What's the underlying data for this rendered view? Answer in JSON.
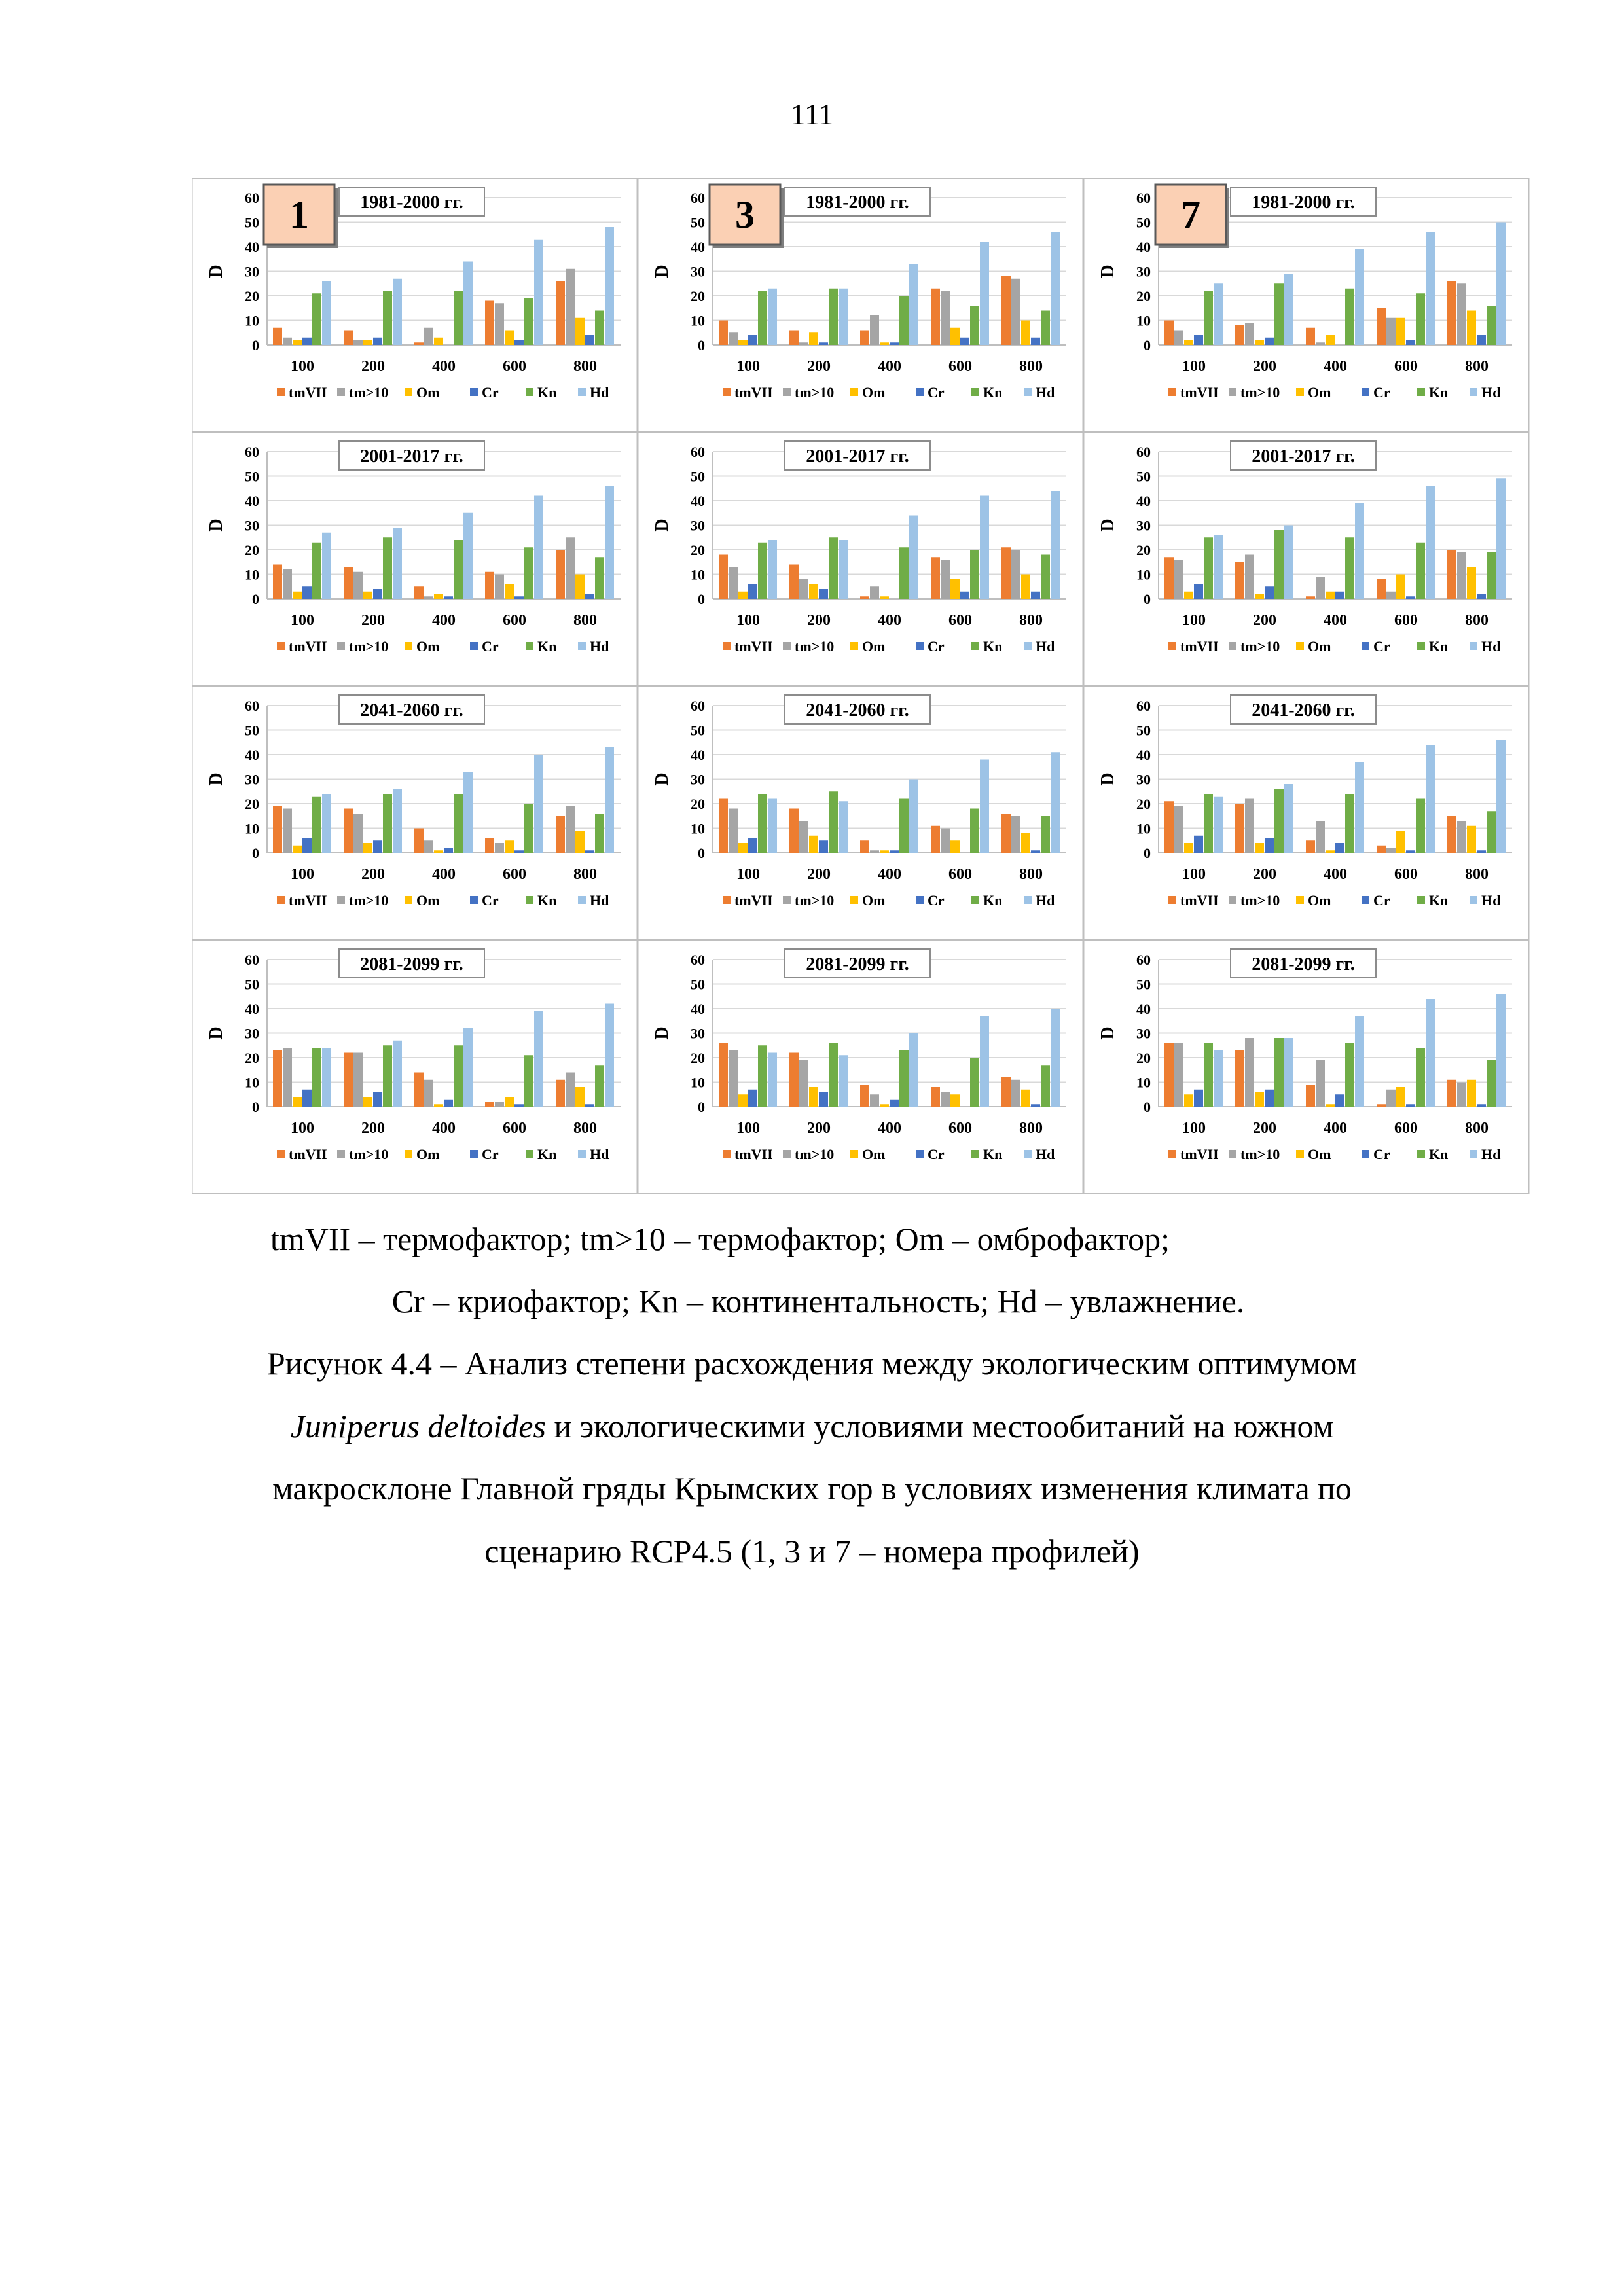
{
  "page_number": "111",
  "legend": [
    "tmVII",
    "tm>10",
    "Om",
    "Cr",
    "Kn",
    "Hd"
  ],
  "series_colors": [
    "#ED7D31",
    "#A5A5A5",
    "#FFC000",
    "#4472C4",
    "#70AD47",
    "#9DC3E6"
  ],
  "caption": {
    "legend_line1": "tmVII – термофактор; tm>10 – термофактор; Om – омброфактор;",
    "legend_line2": "Cr – криофактор; Kn – континентальность; Hd – увлажнение.",
    "figure_line1": "Рисунок 4.4 – Анализ степени расхождения между экологическим оптимумом",
    "figure_species": "Juniperus deltoides",
    "figure_line2_rest": " и экологическими условиями местообитаний на южном",
    "figure_line3": "макросклоне Главной гряды Крымских гор в условиях изменения климата по",
    "figure_line4": "сценарию RCP4.5 (1, 3 и 7 – номера профилей)"
  },
  "chart_data": [
    {
      "type": "bar",
      "profile": "1",
      "title": "1981-2000 гг.",
      "ylabel": "D",
      "ylim": [
        0,
        60
      ],
      "yticks": [
        0,
        10,
        20,
        30,
        40,
        50,
        60
      ],
      "categories": [
        "100",
        "200",
        "400",
        "600",
        "800"
      ],
      "series": [
        {
          "name": "tmVII",
          "values": [
            7,
            6,
            1,
            18,
            26
          ]
        },
        {
          "name": "tm>10",
          "values": [
            3,
            2,
            7,
            17,
            31
          ]
        },
        {
          "name": "Om",
          "values": [
            2,
            2,
            3,
            6,
            11
          ]
        },
        {
          "name": "Cr",
          "values": [
            3,
            3,
            0,
            2,
            4
          ]
        },
        {
          "name": "Kn",
          "values": [
            21,
            22,
            22,
            19,
            14
          ]
        },
        {
          "name": "Hd",
          "values": [
            26,
            27,
            34,
            43,
            48
          ]
        }
      ]
    },
    {
      "type": "bar",
      "profile": "3",
      "title": "1981-2000 гг.",
      "ylabel": "D",
      "ylim": [
        0,
        60
      ],
      "yticks": [
        0,
        10,
        20,
        30,
        40,
        50,
        60
      ],
      "categories": [
        "100",
        "200",
        "400",
        "600",
        "800"
      ],
      "series": [
        {
          "name": "tmVII",
          "values": [
            10,
            6,
            6,
            23,
            28
          ]
        },
        {
          "name": "tm>10",
          "values": [
            5,
            1,
            12,
            22,
            27
          ]
        },
        {
          "name": "Om",
          "values": [
            2,
            5,
            1,
            7,
            10
          ]
        },
        {
          "name": "Cr",
          "values": [
            4,
            1,
            1,
            3,
            3
          ]
        },
        {
          "name": "Kn",
          "values": [
            22,
            23,
            20,
            16,
            14
          ]
        },
        {
          "name": "Hd",
          "values": [
            23,
            23,
            33,
            42,
            46
          ]
        }
      ]
    },
    {
      "type": "bar",
      "profile": "7",
      "title": "1981-2000 гг.",
      "ylabel": "D",
      "ylim": [
        0,
        60
      ],
      "yticks": [
        0,
        10,
        20,
        30,
        40,
        50,
        60
      ],
      "categories": [
        "100",
        "200",
        "400",
        "600",
        "800"
      ],
      "series": [
        {
          "name": "tmVII",
          "values": [
            10,
            8,
            7,
            15,
            26
          ]
        },
        {
          "name": "tm>10",
          "values": [
            6,
            9,
            1,
            11,
            25
          ]
        },
        {
          "name": "Om",
          "values": [
            2,
            2,
            4,
            11,
            14
          ]
        },
        {
          "name": "Cr",
          "values": [
            4,
            3,
            0,
            2,
            4
          ]
        },
        {
          "name": "Kn",
          "values": [
            22,
            25,
            23,
            21,
            16
          ]
        },
        {
          "name": "Hd",
          "values": [
            25,
            29,
            39,
            46,
            50
          ]
        }
      ]
    },
    {
      "type": "bar",
      "title": "2001-2017 гг.",
      "ylabel": "D",
      "ylim": [
        0,
        60
      ],
      "yticks": [
        0,
        10,
        20,
        30,
        40,
        50,
        60
      ],
      "categories": [
        "100",
        "200",
        "400",
        "600",
        "800"
      ],
      "series": [
        {
          "name": "tmVII",
          "values": [
            14,
            13,
            5,
            11,
            20
          ]
        },
        {
          "name": "tm>10",
          "values": [
            12,
            11,
            1,
            10,
            25
          ]
        },
        {
          "name": "Om",
          "values": [
            3,
            3,
            2,
            6,
            10
          ]
        },
        {
          "name": "Cr",
          "values": [
            5,
            4,
            1,
            1,
            2
          ]
        },
        {
          "name": "Kn",
          "values": [
            23,
            25,
            24,
            21,
            17
          ]
        },
        {
          "name": "Hd",
          "values": [
            27,
            29,
            35,
            42,
            46
          ]
        }
      ]
    },
    {
      "type": "bar",
      "title": "2001-2017 гг.",
      "ylabel": "D",
      "ylim": [
        0,
        60
      ],
      "yticks": [
        0,
        10,
        20,
        30,
        40,
        50,
        60
      ],
      "categories": [
        "100",
        "200",
        "400",
        "600",
        "800"
      ],
      "series": [
        {
          "name": "tmVII",
          "values": [
            18,
            14,
            1,
            17,
            21
          ]
        },
        {
          "name": "tm>10",
          "values": [
            13,
            8,
            5,
            16,
            20
          ]
        },
        {
          "name": "Om",
          "values": [
            3,
            6,
            1,
            8,
            10
          ]
        },
        {
          "name": "Cr",
          "values": [
            6,
            4,
            0,
            3,
            3
          ]
        },
        {
          "name": "Kn",
          "values": [
            23,
            25,
            21,
            20,
            18
          ]
        },
        {
          "name": "Hd",
          "values": [
            24,
            24,
            34,
            42,
            44
          ]
        }
      ]
    },
    {
      "type": "bar",
      "title": "2001-2017 гг.",
      "ylabel": "D",
      "ylim": [
        0,
        60
      ],
      "yticks": [
        0,
        10,
        20,
        30,
        40,
        50,
        60
      ],
      "categories": [
        "100",
        "200",
        "400",
        "600",
        "800"
      ],
      "series": [
        {
          "name": "tmVII",
          "values": [
            17,
            15,
            1,
            8,
            20
          ]
        },
        {
          "name": "tm>10",
          "values": [
            16,
            18,
            9,
            3,
            19
          ]
        },
        {
          "name": "Om",
          "values": [
            3,
            2,
            3,
            10,
            13
          ]
        },
        {
          "name": "Cr",
          "values": [
            6,
            5,
            3,
            1,
            2
          ]
        },
        {
          "name": "Kn",
          "values": [
            25,
            28,
            25,
            23,
            19
          ]
        },
        {
          "name": "Hd",
          "values": [
            26,
            30,
            39,
            46,
            49
          ]
        }
      ]
    },
    {
      "type": "bar",
      "title": "2041-2060 гг.",
      "ylabel": "D",
      "ylim": [
        0,
        60
      ],
      "yticks": [
        0,
        10,
        20,
        30,
        40,
        50,
        60
      ],
      "categories": [
        "100",
        "200",
        "400",
        "600",
        "800"
      ],
      "series": [
        {
          "name": "tmVII",
          "values": [
            19,
            18,
            10,
            6,
            15
          ]
        },
        {
          "name": "tm>10",
          "values": [
            18,
            16,
            5,
            4,
            19
          ]
        },
        {
          "name": "Om",
          "values": [
            3,
            4,
            1,
            5,
            9
          ]
        },
        {
          "name": "Cr",
          "values": [
            6,
            5,
            2,
            1,
            1
          ]
        },
        {
          "name": "Kn",
          "values": [
            23,
            24,
            24,
            20,
            16
          ]
        },
        {
          "name": "Hd",
          "values": [
            24,
            26,
            33,
            40,
            43
          ]
        }
      ]
    },
    {
      "type": "bar",
      "title": "2041-2060 гг.",
      "ylabel": "D",
      "ylim": [
        0,
        60
      ],
      "yticks": [
        0,
        10,
        20,
        30,
        40,
        50,
        60
      ],
      "categories": [
        "100",
        "200",
        "400",
        "600",
        "800"
      ],
      "series": [
        {
          "name": "tmVII",
          "values": [
            22,
            18,
            5,
            11,
            16
          ]
        },
        {
          "name": "tm>10",
          "values": [
            18,
            13,
            1,
            10,
            15
          ]
        },
        {
          "name": "Om",
          "values": [
            4,
            7,
            1,
            5,
            8
          ]
        },
        {
          "name": "Cr",
          "values": [
            6,
            5,
            1,
            0,
            1
          ]
        },
        {
          "name": "Kn",
          "values": [
            24,
            25,
            22,
            18,
            15
          ]
        },
        {
          "name": "Hd",
          "values": [
            22,
            21,
            30,
            38,
            41
          ]
        }
      ]
    },
    {
      "type": "bar",
      "title": "2041-2060 гг.",
      "ylabel": "D",
      "ylim": [
        0,
        60
      ],
      "yticks": [
        0,
        10,
        20,
        30,
        40,
        50,
        60
      ],
      "categories": [
        "100",
        "200",
        "400",
        "600",
        "800"
      ],
      "series": [
        {
          "name": "tmVII",
          "values": [
            21,
            20,
            5,
            3,
            15
          ]
        },
        {
          "name": "tm>10",
          "values": [
            19,
            22,
            13,
            2,
            13
          ]
        },
        {
          "name": "Om",
          "values": [
            4,
            4,
            1,
            9,
            11
          ]
        },
        {
          "name": "Cr",
          "values": [
            7,
            6,
            4,
            1,
            1
          ]
        },
        {
          "name": "Kn",
          "values": [
            24,
            26,
            24,
            22,
            17
          ]
        },
        {
          "name": "Hd",
          "values": [
            23,
            28,
            37,
            44,
            46
          ]
        }
      ]
    },
    {
      "type": "bar",
      "title": "2081-2099 гг.",
      "ylabel": "D",
      "ylim": [
        0,
        60
      ],
      "yticks": [
        0,
        10,
        20,
        30,
        40,
        50,
        60
      ],
      "categories": [
        "100",
        "200",
        "400",
        "600",
        "800"
      ],
      "series": [
        {
          "name": "tmVII",
          "values": [
            23,
            22,
            14,
            2,
            11
          ]
        },
        {
          "name": "tm>10",
          "values": [
            24,
            22,
            11,
            2,
            14
          ]
        },
        {
          "name": "Om",
          "values": [
            4,
            4,
            1,
            4,
            8
          ]
        },
        {
          "name": "Cr",
          "values": [
            7,
            6,
            3,
            1,
            1
          ]
        },
        {
          "name": "Kn",
          "values": [
            24,
            25,
            25,
            21,
            17
          ]
        },
        {
          "name": "Hd",
          "values": [
            24,
            27,
            32,
            39,
            42
          ]
        }
      ]
    },
    {
      "type": "bar",
      "title": "2081-2099 гг.",
      "ylabel": "D",
      "ylim": [
        0,
        60
      ],
      "yticks": [
        0,
        10,
        20,
        30,
        40,
        50,
        60
      ],
      "categories": [
        "100",
        "200",
        "400",
        "600",
        "800"
      ],
      "series": [
        {
          "name": "tmVII",
          "values": [
            26,
            22,
            9,
            8,
            12
          ]
        },
        {
          "name": "tm>10",
          "values": [
            23,
            19,
            5,
            6,
            11
          ]
        },
        {
          "name": "Om",
          "values": [
            5,
            8,
            1,
            5,
            7
          ]
        },
        {
          "name": "Cr",
          "values": [
            7,
            6,
            3,
            0,
            1
          ]
        },
        {
          "name": "Kn",
          "values": [
            25,
            26,
            23,
            20,
            17
          ]
        },
        {
          "name": "Hd",
          "values": [
            22,
            21,
            30,
            37,
            40
          ]
        }
      ]
    },
    {
      "type": "bar",
      "title": "2081-2099 гг.",
      "ylabel": "D",
      "ylim": [
        0,
        60
      ],
      "yticks": [
        0,
        10,
        20,
        30,
        40,
        50,
        60
      ],
      "categories": [
        "100",
        "200",
        "400",
        "600",
        "800"
      ],
      "series": [
        {
          "name": "tmVII",
          "values": [
            26,
            23,
            9,
            1,
            11
          ]
        },
        {
          "name": "tm>10",
          "values": [
            26,
            28,
            19,
            7,
            10
          ]
        },
        {
          "name": "Om",
          "values": [
            5,
            6,
            1,
            8,
            11
          ]
        },
        {
          "name": "Cr",
          "values": [
            7,
            7,
            5,
            1,
            1
          ]
        },
        {
          "name": "Kn",
          "values": [
            26,
            28,
            26,
            24,
            19
          ]
        },
        {
          "name": "Hd",
          "values": [
            23,
            28,
            37,
            44,
            46
          ]
        }
      ]
    }
  ]
}
